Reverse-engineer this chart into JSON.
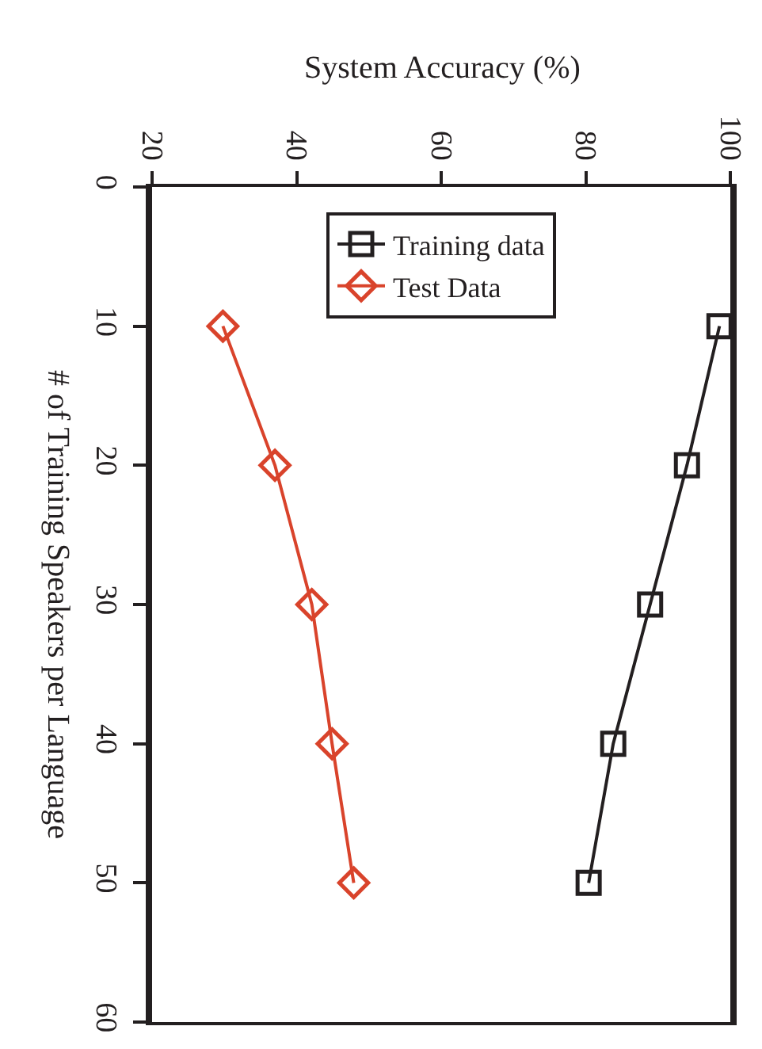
{
  "chart_data": {
    "type": "line",
    "xlabel": "System Accuracy (%)",
    "ylabel": "# of Training Speakers per Language",
    "series": [
      {
        "name": "Training data",
        "color": "#231f20",
        "x": [
          98.5,
          94.0,
          88.9,
          83.8,
          80.4
        ],
        "values": [
          10,
          20,
          30,
          40,
          50
        ],
        "marker": "square"
      },
      {
        "name": "Test Data",
        "color": "#d9432b",
        "x": [
          29.8,
          37.0,
          42.1,
          44.9,
          47.9
        ],
        "values": [
          10,
          20,
          30,
          40,
          50
        ],
        "marker": "diamond"
      }
    ],
    "xlim": [
      20,
      100
    ],
    "xticks": [
      20,
      40,
      60,
      80,
      100
    ],
    "ylim": [
      60,
      0
    ],
    "yticks": [
      0,
      10,
      20,
      30,
      40,
      50,
      60
    ],
    "legend": "top",
    "line_style": "solid"
  }
}
